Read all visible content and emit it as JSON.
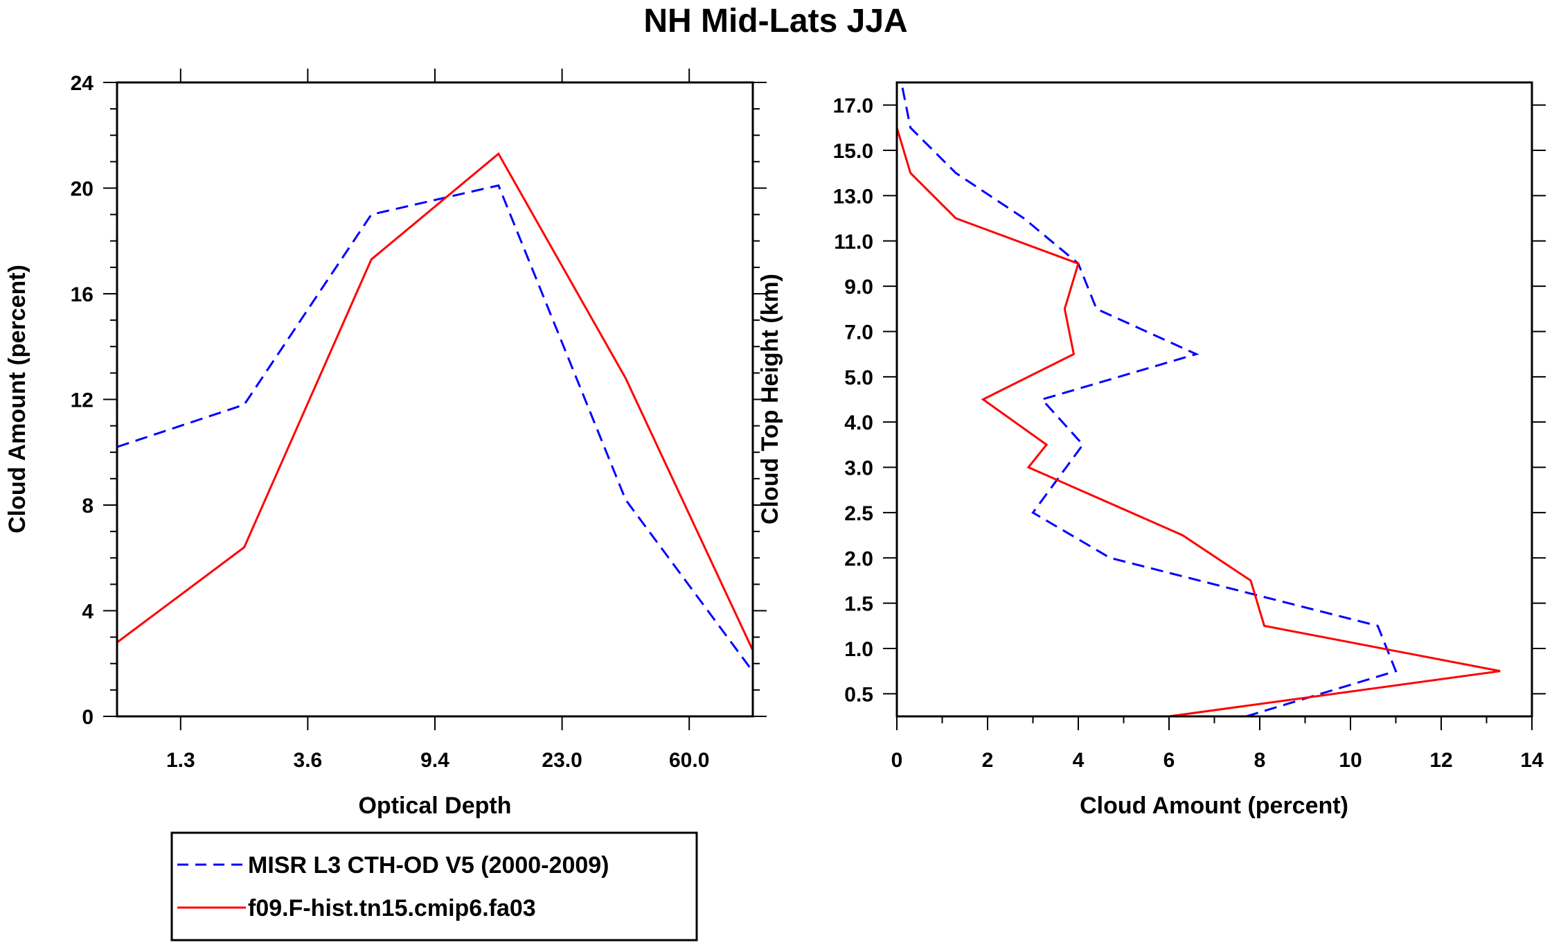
{
  "figure_title": "NH Mid-Lats JJA",
  "colors": {
    "obs": "#0000ff",
    "model": "#ff0000",
    "axes": "#000000"
  },
  "legend": {
    "entries": [
      {
        "label": "MISR L3 CTH-OD V5 (2000-2009)",
        "color": "#0000ff",
        "style": "dashed"
      },
      {
        "label": "f09.F-hist.tn15.cmip6.fa03",
        "color": "#ff0000",
        "style": "solid"
      }
    ]
  },
  "chart_data": [
    {
      "type": "line",
      "title": "",
      "xlabel": "Optical Depth",
      "ylabel": "Cloud Amount (percent)",
      "x_bin_centers": [
        0,
        1,
        2,
        3,
        4,
        5
      ],
      "xlim": [
        -0.5,
        4.5
      ],
      "x_tick_positions": [
        0,
        1,
        2,
        3,
        4
      ],
      "x_tick_labels": [
        "1.3",
        "3.6",
        "9.4",
        "23.0",
        "60.0"
      ],
      "x_plot_positions": [
        -0.5,
        0.5,
        1.5,
        2.5,
        3.5,
        4.5
      ],
      "ylim": [
        0,
        24
      ],
      "y_ticks": [
        0,
        4,
        8,
        12,
        16,
        20,
        24
      ],
      "y_minor_step": 1,
      "series": [
        {
          "name": "MISR L3 CTH-OD V5 (2000-2009)",
          "style": "dashed",
          "values": [
            10.2,
            11.8,
            19.0,
            20.1,
            8.2,
            1.7
          ]
        },
        {
          "name": "f09.F-hist.tn15.cmip6.fa03",
          "style": "solid",
          "values": [
            2.8,
            6.4,
            17.3,
            21.3,
            12.8,
            2.5
          ]
        }
      ]
    },
    {
      "type": "line",
      "title": "",
      "xlabel": "Cloud Amount (percent)",
      "ylabel": "Cloud Top Height (km)",
      "xlim": [
        0,
        14
      ],
      "x_ticks": [
        0,
        2,
        4,
        6,
        8,
        10,
        12,
        14
      ],
      "ylim": [
        0,
        14
      ],
      "y_tick_positions": [
        0.5,
        1.5,
        2.5,
        3.5,
        4.5,
        5.5,
        6.5,
        7.5,
        8.5,
        9.5,
        10.5,
        11.5,
        12.5,
        13.5
      ],
      "y_tick_labels": [
        "0.5",
        "1.0",
        "1.5",
        "2.0",
        "2.5",
        "3.0",
        "4.0",
        "5.0",
        "7.0",
        "9.0",
        "11.0",
        "13.0",
        "15.0",
        "17.0"
      ],
      "series": [
        {
          "name": "MISR L3 CTH-OD V5 (2000-2009)",
          "style": "dashed",
          "x": [
            7.7,
            11.0,
            10.6,
            4.7,
            3.0,
            4.1,
            3.2,
            6.6,
            4.4,
            4.0,
            2.8,
            1.3,
            0.3,
            0.1
          ],
          "y": [
            0,
            1,
            2,
            3.5,
            4.5,
            6,
            7,
            8,
            9,
            10,
            11,
            12,
            13,
            14
          ]
        },
        {
          "name": "f09.F-hist.tn15.cmip6.fa03",
          "style": "solid",
          "x": [
            6.0,
            13.3,
            8.1,
            7.8,
            6.3,
            2.9,
            3.3,
            1.9,
            3.9,
            3.7,
            4.0,
            1.3,
            0.3,
            0.0
          ],
          "y": [
            0,
            1,
            2,
            3,
            4,
            5.5,
            6,
            7,
            8,
            9,
            10,
            11,
            12,
            13
          ]
        }
      ]
    }
  ]
}
